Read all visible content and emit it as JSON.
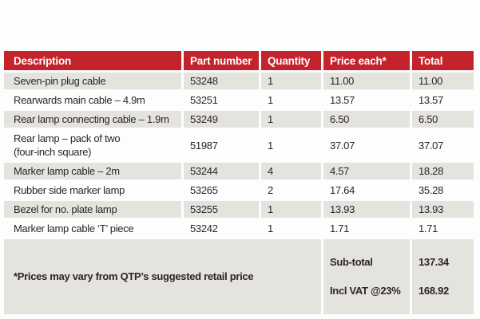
{
  "style": {
    "header_bg": "#c5232b",
    "header_text": "#ffffff",
    "row_shade_bg": "#e4e3de",
    "row_plain_bg": "#fdfdfd",
    "body_text": "#2a2627"
  },
  "chart_data": {
    "type": "table",
    "columns": [
      "Description",
      "Part number",
      "Quantity",
      "Price each*",
      "Total"
    ],
    "rows": [
      {
        "description": "Seven-pin plug cable",
        "part_number": "53248",
        "quantity": "1",
        "price_each": "11.00",
        "total": "11.00"
      },
      {
        "description": "Rearwards main cable – 4.9m",
        "part_number": "53251",
        "quantity": "1",
        "price_each": "13.57",
        "total": "13.57"
      },
      {
        "description": "Rear lamp connecting cable – 1.9m",
        "part_number": "53249",
        "quantity": "1",
        "price_each": "6.50",
        "total": "6.50"
      },
      {
        "description": "Rear lamp – pack of two\n(four-inch square)",
        "part_number": "51987",
        "quantity": "1",
        "price_each": "37.07",
        "total": "37.07"
      },
      {
        "description": "Marker lamp cable – 2m",
        "part_number": "53244",
        "quantity": "4",
        "price_each": "4.57",
        "total": "18.28"
      },
      {
        "description": "Rubber side marker lamp",
        "part_number": "53265",
        "quantity": "2",
        "price_each": "17.64",
        "total": "35.28"
      },
      {
        "description": "Bezel for no. plate lamp",
        "part_number": "53255",
        "quantity": "1",
        "price_each": "13.93",
        "total": "13.93"
      },
      {
        "description": "Marker lamp cable ‘T’ piece",
        "part_number": "53242",
        "quantity": "1",
        "price_each": "1.71",
        "total": "1.71"
      }
    ],
    "footer": {
      "note": "*Prices may vary from QTP’s suggested retail price",
      "subtotal_label": "Sub-total",
      "subtotal_value": "137.34",
      "vat_label": "Incl VAT @23%",
      "vat_value": "168.92"
    }
  }
}
